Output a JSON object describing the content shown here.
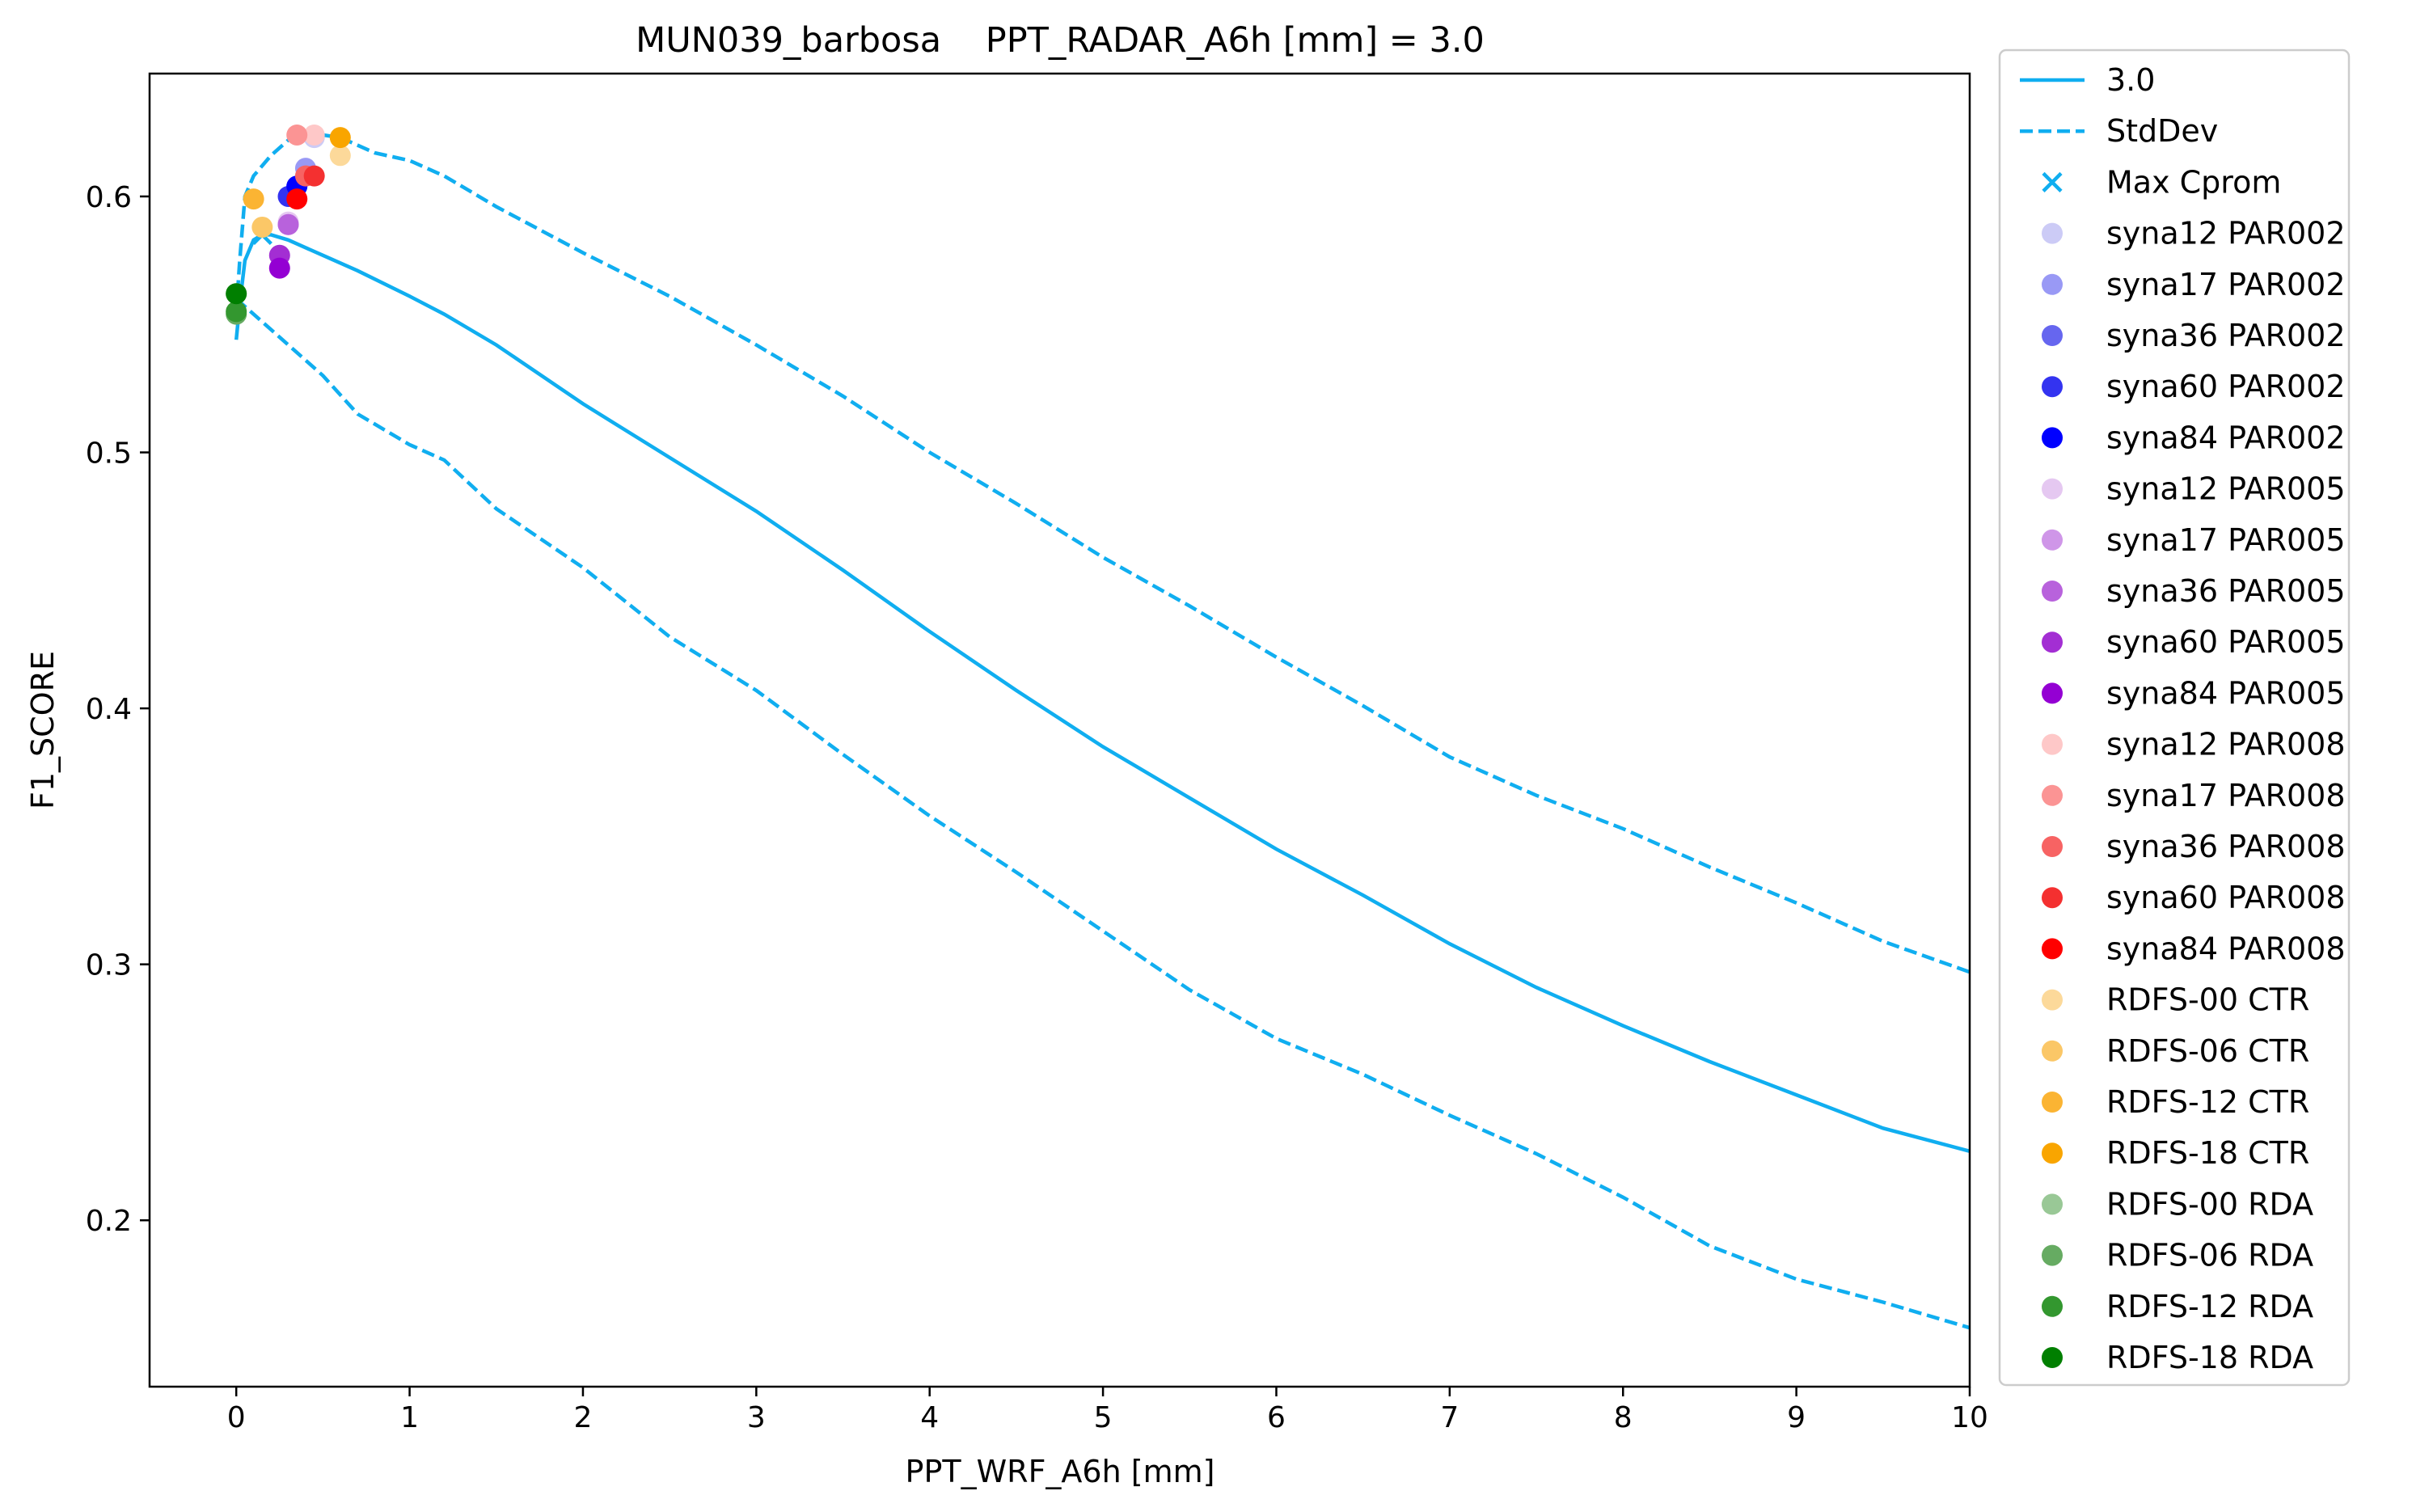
{
  "chart_data": {
    "type": "line",
    "title": "MUN039_barbosa    PPT_RADAR_A6h [mm] = 3.0",
    "xlabel": "PPT_WRF_A6h [mm]",
    "ylabel": "F1_SCORE",
    "xlim": [
      -0.5,
      10
    ],
    "ylim": [
      0.135,
      0.648
    ],
    "xticks": [
      "0",
      "1",
      "2",
      "3",
      "4",
      "5",
      "6",
      "7",
      "8",
      "9",
      "10"
    ],
    "yticks": [
      "0.2",
      "0.3",
      "0.4",
      "0.5",
      "0.6"
    ],
    "grid": false,
    "legend_placement": "outside right",
    "curve": {
      "name": "3.0",
      "color": "#10aef0",
      "x": [
        0,
        0.02,
        0.05,
        0.1,
        0.15,
        0.2,
        0.3,
        0.4,
        0.5,
        0.7,
        1,
        1.2,
        1.5,
        2,
        2.5,
        3,
        3.5,
        4,
        4.5,
        5,
        5.5,
        6,
        6.5,
        7,
        7.5,
        8,
        8.5,
        9,
        9.5,
        10
      ],
      "y": [
        0.544,
        0.558,
        0.575,
        0.583,
        0.585,
        0.585,
        0.583,
        0.58,
        0.577,
        0.571,
        0.561,
        0.554,
        0.542,
        0.519,
        0.498,
        0.477,
        0.454,
        0.43,
        0.407,
        0.385,
        0.365,
        0.345,
        0.327,
        0.308,
        0.291,
        0.276,
        0.262,
        0.249,
        0.236,
        0.227
      ]
    },
    "stddev_upper": {
      "name": "StdDev",
      "color": "#10aef0",
      "x": [
        0,
        0.02,
        0.05,
        0.1,
        0.2,
        0.3,
        0.4,
        0.6,
        0.8,
        1,
        1.2,
        1.5,
        2,
        2.5,
        3,
        3.5,
        4,
        4.5,
        5,
        5.5,
        6,
        6.5,
        7,
        7.5,
        8,
        8.5,
        9,
        9.5,
        10
      ],
      "y": [
        0.555,
        0.575,
        0.6,
        0.608,
        0.616,
        0.622,
        0.625,
        0.623,
        0.617,
        0.614,
        0.608,
        0.596,
        0.578,
        0.561,
        0.542,
        0.522,
        0.5,
        0.48,
        0.459,
        0.44,
        0.42,
        0.401,
        0.381,
        0.366,
        0.353,
        0.338,
        0.324,
        0.309,
        0.297
      ]
    },
    "stddev_lower": {
      "color": "#10aef0",
      "x": [
        0,
        0.2,
        0.5,
        0.7,
        1,
        1.2,
        1.5,
        2,
        2.5,
        3,
        3.5,
        4,
        4.5,
        5,
        5.5,
        6,
        6.5,
        7,
        7.5,
        8,
        8.5,
        9,
        9.5,
        10
      ],
      "y": [
        0.56,
        0.548,
        0.53,
        0.515,
        0.503,
        0.497,
        0.478,
        0.455,
        0.428,
        0.407,
        0.382,
        0.358,
        0.336,
        0.313,
        0.29,
        0.271,
        0.257,
        0.241,
        0.226,
        0.209,
        0.19,
        0.177,
        0.168,
        0.158
      ]
    },
    "max_cprom": {
      "name": "Max Cprom",
      "x": 0.15,
      "y": 0.585,
      "color": "#10aef0"
    },
    "points": [
      {
        "name": "syna12 PAR002",
        "x": 0.45,
        "y": 0.623,
        "color": "#cccbf6"
      },
      {
        "name": "syna17 PAR002",
        "x": 0.4,
        "y": 0.611,
        "color": "#9999f5"
      },
      {
        "name": "syna36 PAR002",
        "x": 0.35,
        "y": 0.604,
        "color": "#6666ef"
      },
      {
        "name": "syna60 PAR002",
        "x": 0.3,
        "y": 0.6,
        "color": "#3333f0"
      },
      {
        "name": "syna84 PAR002",
        "x": 0.35,
        "y": 0.604,
        "color": "#0000ff"
      },
      {
        "name": "syna12 PAR005",
        "x": 0.3,
        "y": 0.59,
        "color": "#e5c8f1"
      },
      {
        "name": "syna17 PAR005",
        "x": 0.3,
        "y": 0.589,
        "color": "#cf96e8"
      },
      {
        "name": "syna36 PAR005",
        "x": 0.3,
        "y": 0.589,
        "color": "#b862dc"
      },
      {
        "name": "syna60 PAR005",
        "x": 0.25,
        "y": 0.577,
        "color": "#a32ed3"
      },
      {
        "name": "syna84 PAR005",
        "x": 0.25,
        "y": 0.572,
        "color": "#9400d3"
      },
      {
        "name": "syna12 PAR008",
        "x": 0.45,
        "y": 0.624,
        "color": "#fec8c8"
      },
      {
        "name": "syna17 PAR008",
        "x": 0.35,
        "y": 0.624,
        "color": "#fb9494"
      },
      {
        "name": "syna36 PAR008",
        "x": 0.4,
        "y": 0.608,
        "color": "#f76363"
      },
      {
        "name": "syna60 PAR008",
        "x": 0.45,
        "y": 0.608,
        "color": "#f43030"
      },
      {
        "name": "syna84 PAR008",
        "x": 0.35,
        "y": 0.599,
        "color": "#ff0000"
      },
      {
        "name": " RDFS-00 CTR",
        "x": 0.6,
        "y": 0.616,
        "color": "#fcd99a"
      },
      {
        "name": " RDFS-06 CTR",
        "x": 0.15,
        "y": 0.588,
        "color": "#fbc767"
      },
      {
        "name": " RDFS-12 CTR",
        "x": 0.1,
        "y": 0.599,
        "color": "#fbb433"
      },
      {
        "name": " RDFS-18 CTR",
        "x": 0.6,
        "y": 0.623,
        "color": "#f9a500"
      },
      {
        "name": " RDFS-00 RDA",
        "x": 0.0,
        "y": 0.562,
        "color": "#99c896"
      },
      {
        "name": " RDFS-06 RDA",
        "x": 0.0,
        "y": 0.554,
        "color": "#66ab62"
      },
      {
        "name": " RDFS-12 RDA",
        "x": 0.0,
        "y": 0.555,
        "color": "#33972f"
      },
      {
        "name": " RDFS-18 RDA",
        "x": 0.0,
        "y": 0.562,
        "color": "#007f00"
      }
    ]
  }
}
